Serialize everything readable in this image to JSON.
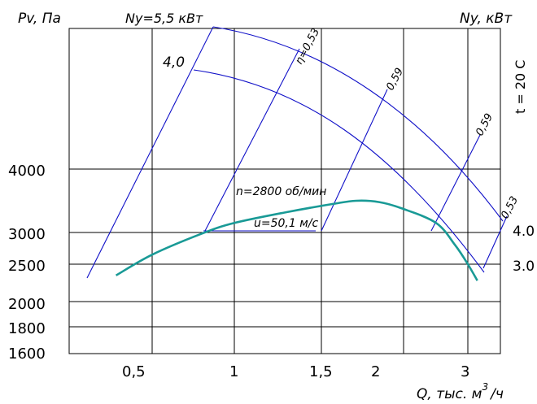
{
  "chart_data": {
    "type": "line",
    "y_axis_label": "Pv, Па",
    "y2_axis_label": "Ny, кВт",
    "x_axis_label": "Q, тыс. м³/ч",
    "x_axis_label_parts": {
      "text": "Q, тыс. м",
      "sup": "3",
      "tail": "/ч"
    },
    "temperature_label": "t = 20 C",
    "speed_label": "n=2800 об/мин",
    "tip_speed_label": "u=50,1 м/с",
    "x_ticks": [
      "0,5",
      "1",
      "1,5",
      "2",
      "3"
    ],
    "y_ticks": [
      "4000",
      "3000",
      "2500",
      "2000",
      "1800",
      "1600"
    ],
    "y2_ticks": [
      "4.0",
      "3.0"
    ],
    "power_curve_labels": [
      "Ny=5,5 кВт",
      "4,0"
    ],
    "efficiency_labels": [
      "η=0,53",
      "0,59",
      "0,59",
      "0,53"
    ],
    "series": [
      {
        "name": "Pv",
        "x": [
          0.28,
          0.5,
          0.8,
          1.0,
          1.3,
          1.6,
          1.8,
          2.0,
          2.2,
          2.5,
          2.8,
          3.0,
          3.15
        ],
        "y": [
          2350,
          2650,
          2980,
          3150,
          3320,
          3450,
          3500,
          3480,
          3380,
          3150,
          2800,
          2500,
          2280
        ]
      }
    ],
    "colors": {
      "pressure_curve": "#199a96",
      "power_and_efficiency_lines": "#1010c8",
      "grid": "#000000"
    },
    "grid": true
  }
}
